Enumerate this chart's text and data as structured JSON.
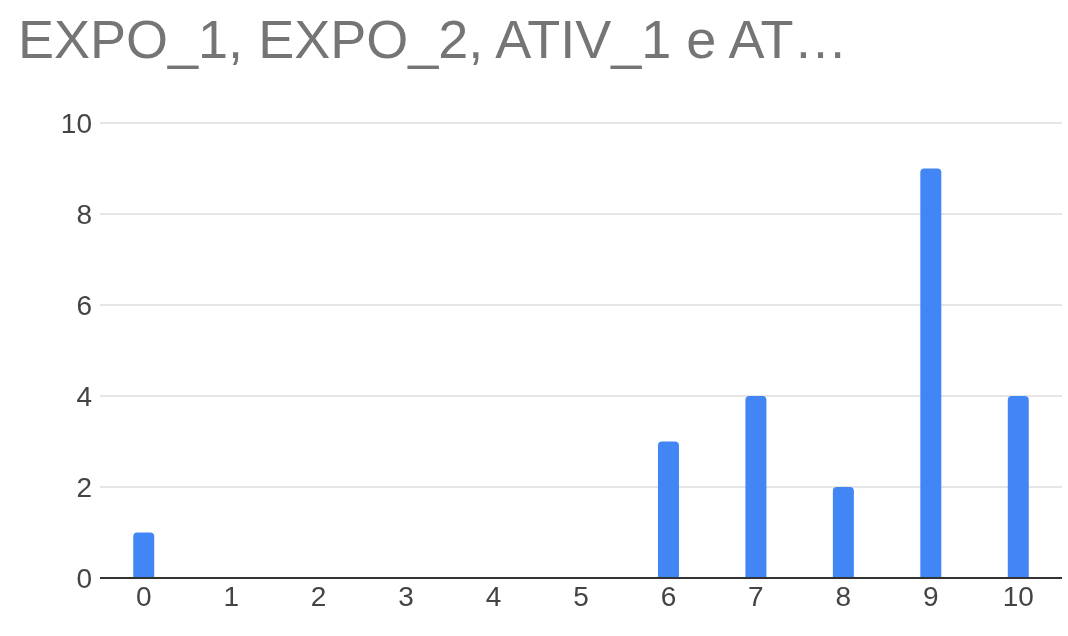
{
  "chart_data": {
    "type": "bar",
    "title": "EXPO_1, EXPO_2, ATIV_1 e AT…",
    "categories": [
      "0",
      "1",
      "2",
      "3",
      "4",
      "5",
      "6",
      "7",
      "8",
      "9",
      "10"
    ],
    "values": [
      1,
      0,
      0,
      0,
      0,
      0,
      3,
      4,
      2,
      9,
      4
    ],
    "color": "#4285f4",
    "ylim": [
      0,
      10
    ],
    "yticks": [
      0,
      2,
      4,
      6,
      8,
      10
    ],
    "grid": "y"
  }
}
